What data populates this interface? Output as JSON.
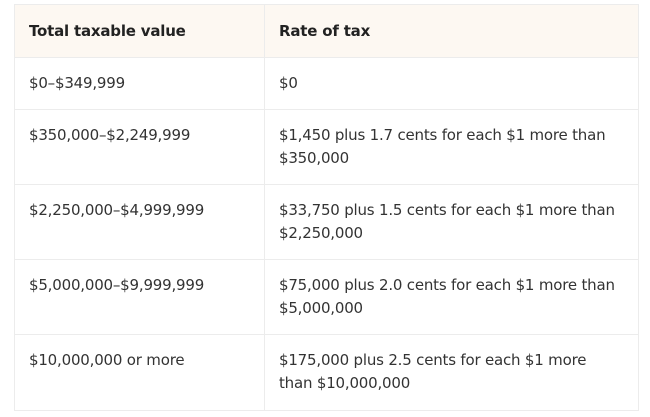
{
  "table": {
    "headers": [
      "Total taxable value",
      "Rate of tax"
    ],
    "rows": [
      [
        "$0–$349,999",
        "$0"
      ],
      [
        "$350,000–$2,249,999",
        "$1,450 plus 1.7 cents for each $1 more than $350,000"
      ],
      [
        "$2,250,000–$4,999,999",
        "$33,750 plus 1.5 cents for each $1 more than $2,250,000"
      ],
      [
        "$5,000,000–$9,999,999",
        "$75,000 plus 2.0 cents for each $1 more than $5,000,000"
      ],
      [
        "$10,000,000 or more",
        "$175,000 plus 2.5 cents for each $1 more than $10,000,000"
      ]
    ]
  },
  "colors": {
    "header_background": "#fdf8f2",
    "border": "#ececec",
    "text": "#333333"
  }
}
